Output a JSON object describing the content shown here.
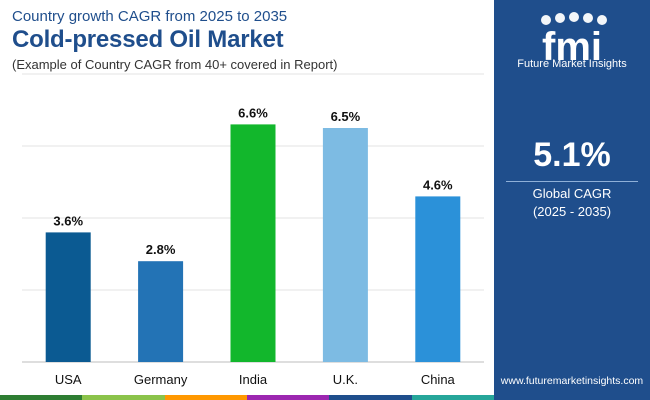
{
  "header": {
    "subtitle": "Country growth CAGR from 2025 to 2035",
    "title": "Cold-pressed Oil Market",
    "caption": "(Example of Country CAGR from 40+ covered in Report)"
  },
  "side_panel": {
    "logo_text": "fmi",
    "logo_caption": "Future Market Insights",
    "cagr_value": "5.1%",
    "cagr_label": "Global CAGR",
    "cagr_period": "(2025 - 2035)",
    "website": "www.futuremarketinsights.com",
    "panel_color": "#1f4e8c"
  },
  "chart_data": {
    "type": "bar",
    "categories": [
      "USA",
      "Germany",
      "India",
      "U.K.",
      "China"
    ],
    "values": [
      3.6,
      2.8,
      6.6,
      6.5,
      4.6
    ],
    "data_labels": [
      "3.6%",
      "2.8%",
      "6.6%",
      "6.5%",
      "4.6%"
    ],
    "colors": [
      "#0b5a92",
      "#2373b5",
      "#12b72c",
      "#7dbbe3",
      "#2b91d9"
    ],
    "ylim": [
      0,
      8
    ],
    "gridlines": [
      2,
      4,
      6,
      8
    ],
    "grid": true,
    "title": "",
    "xlabel": "",
    "ylabel": ""
  },
  "bottom_strip_colors": [
    "#2e7d32",
    "#8bc34a",
    "#ff9800",
    "#9c27b0",
    "#1f4e8c",
    "#26a69a"
  ]
}
